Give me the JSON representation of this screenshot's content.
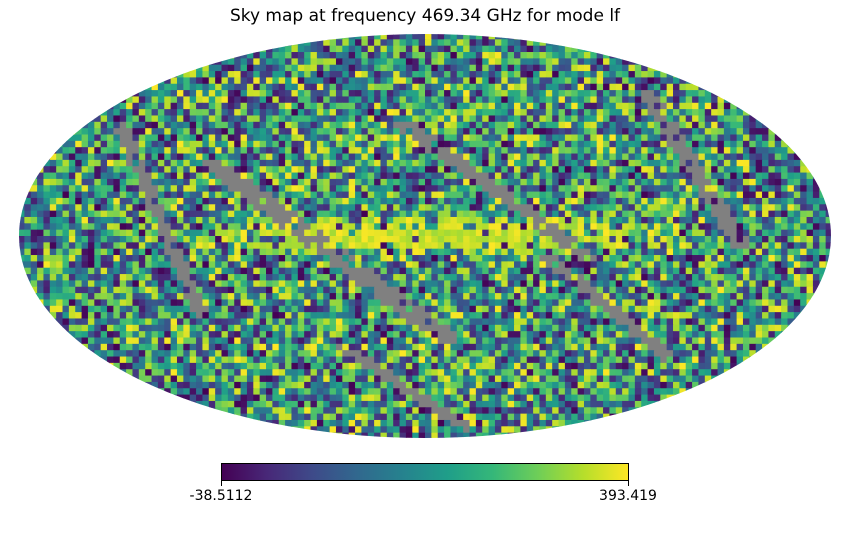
{
  "chart_data": {
    "type": "heatmap",
    "projection": "mollweide",
    "title": "Sky map at frequency 469.34 GHz for mode lf",
    "xlabel": "",
    "ylabel": "",
    "colormap": "viridis",
    "colorbar": {
      "orientation": "horizontal",
      "min": -38.5112,
      "max": 393.419,
      "min_label": "-38.5112",
      "max_label": "393.419"
    },
    "bad_value_color": "#808080",
    "features": [
      {
        "name": "galactic-plane-band",
        "description": "bright band of high values along the equator",
        "level": "high"
      },
      {
        "name": "masked-stripes",
        "description": "grey diagonal scan stripes of unobserved pixels",
        "level": "masked"
      }
    ],
    "grid": false
  }
}
